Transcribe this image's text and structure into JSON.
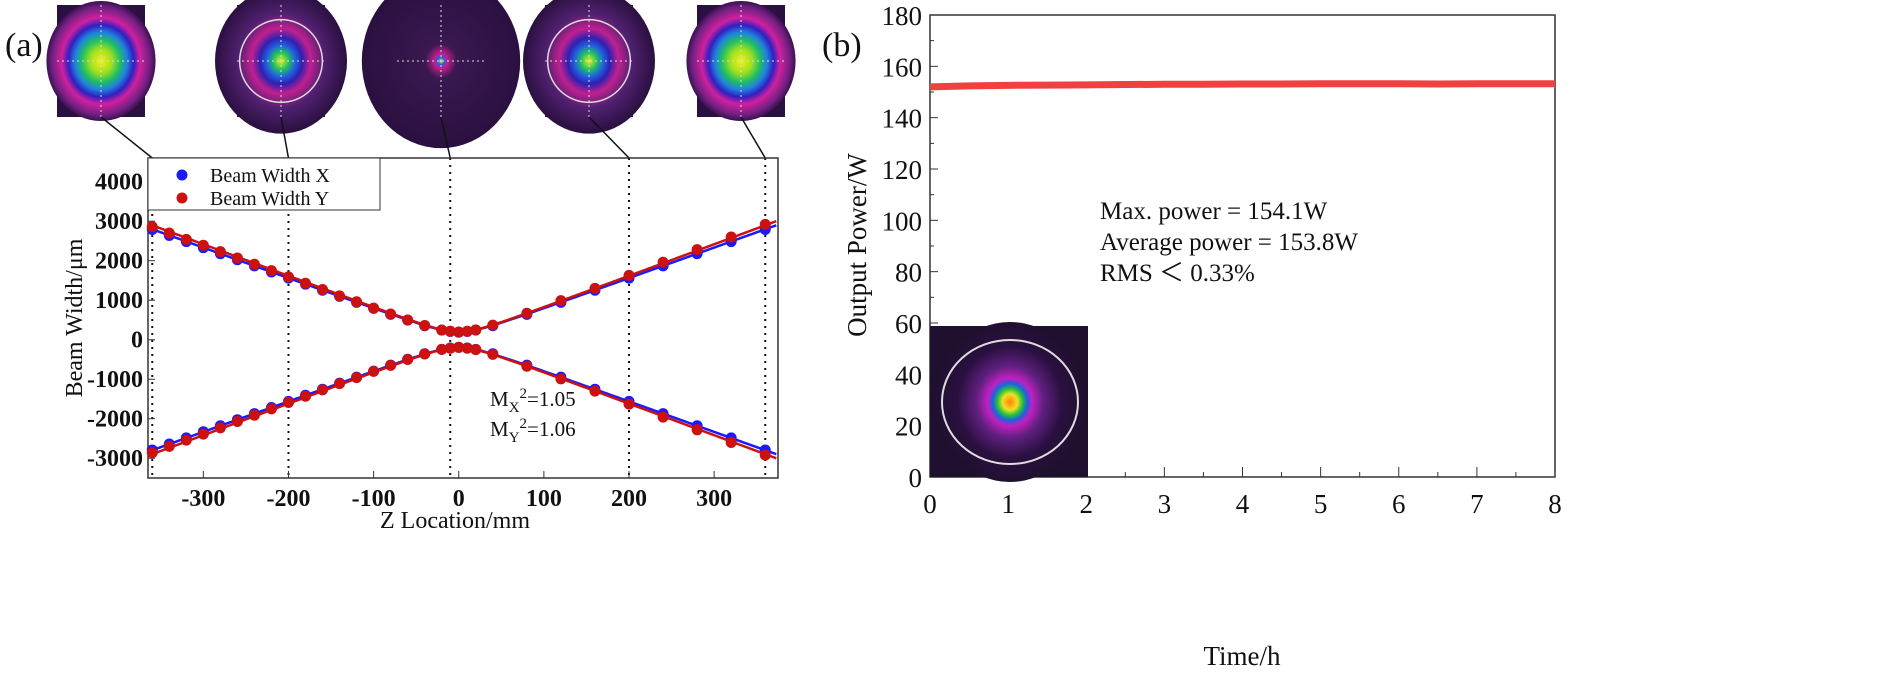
{
  "panel_a_label": "(a)",
  "panel_b_label": "(b)",
  "colors": {
    "x_series": "#1a1aff",
    "y_series": "#cc1111",
    "power": "#f04040"
  },
  "chart_data": [
    {
      "type": "scatter",
      "xlabel": "Z Location/mm",
      "ylabel": "Beam Width/μm",
      "xlim": [
        -365,
        375
      ],
      "ylim": [
        -3500,
        4600
      ],
      "xticks": [
        -300,
        -200,
        -100,
        0,
        100,
        200,
        300
      ],
      "yticks": [
        -3000,
        -2000,
        -1000,
        0,
        1000,
        2000,
        3000,
        4000
      ],
      "grid": false,
      "legend_position": "top-left",
      "beam_image_positions": [
        -360,
        -200,
        -10,
        200,
        360
      ],
      "z": [
        -360,
        -340,
        -320,
        -300,
        -280,
        -260,
        -240,
        -220,
        -200,
        -180,
        -160,
        -140,
        -120,
        -100,
        -80,
        -60,
        -40,
        -20,
        -10,
        0,
        10,
        20,
        40,
        80,
        120,
        160,
        200,
        240,
        280,
        320,
        360
      ],
      "series": [
        {
          "name": "Beam Width X",
          "values": [
            2790,
            2640,
            2485,
            2330,
            2178,
            2024,
            1870,
            1715,
            1560,
            1406,
            1252,
            1098,
            946,
            794,
            643,
            495,
            355,
            243,
            210,
            190,
            210,
            243,
            355,
            643,
            946,
            1252,
            1560,
            1870,
            2178,
            2485,
            2790
          ],
          "m2_label": "M",
          "m2_sub": "X",
          "m2_value": "=1.05"
        },
        {
          "name": "Beam Width Y",
          "values": [
            2860,
            2700,
            2540,
            2390,
            2230,
            2070,
            1910,
            1750,
            1590,
            1430,
            1270,
            1110,
            960,
            800,
            650,
            500,
            360,
            245,
            215,
            195,
            215,
            250,
            370,
            670,
            990,
            1300,
            1630,
            1960,
            2280,
            2600,
            2920
          ],
          "m2_label": "M",
          "m2_sub": "Y",
          "m2_value": "=1.06"
        }
      ]
    },
    {
      "type": "line",
      "xlabel": "Time/h",
      "ylabel": "Output Power/W",
      "xlim": [
        0,
        8
      ],
      "ylim": [
        0,
        180
      ],
      "xticks": [
        0,
        1,
        2,
        3,
        4,
        5,
        6,
        7,
        8
      ],
      "yticks": [
        0,
        20,
        40,
        60,
        80,
        100,
        120,
        140,
        160,
        180
      ],
      "grid": false,
      "x": [
        0,
        0.5,
        1,
        1.5,
        2,
        2.5,
        3,
        3.5,
        4,
        4.5,
        5,
        5.5,
        6,
        6.5,
        7,
        7.5,
        8
      ],
      "values": [
        152.0,
        152.4,
        152.6,
        152.7,
        152.8,
        152.9,
        153.0,
        153.0,
        153.1,
        153.1,
        153.2,
        153.2,
        153.2,
        153.1,
        153.2,
        153.2,
        153.2
      ],
      "annotations": [
        "Max. power = 154.1W",
        "Average power = 153.8W",
        "RMS ＜ 0.33%"
      ]
    }
  ]
}
